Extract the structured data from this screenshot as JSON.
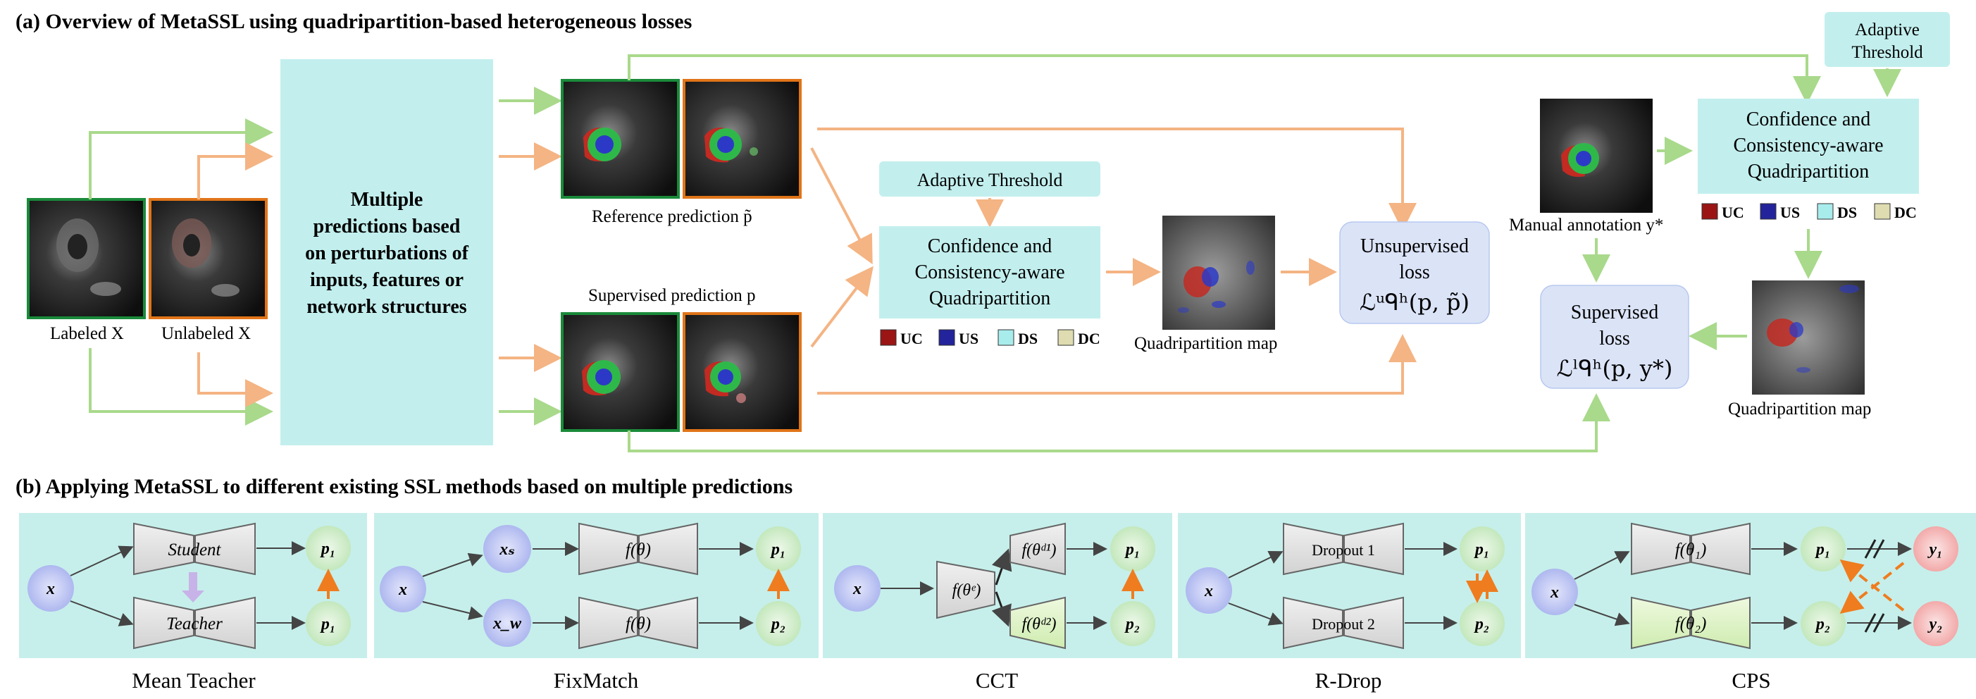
{
  "section_a": {
    "title": "(a) Overview of MetaSSL using quadripartition-based heterogeneous losses",
    "labeled_label": "Labeled X",
    "unlabeled_label": "Unlabeled X",
    "multi_pred_lines": [
      "Multiple",
      "predictions based",
      "on  perturbations of",
      "inputs, features or",
      "network structures"
    ],
    "reference_label": "Reference prediction p̃",
    "supervised_pred_label": "Supervised prediction p",
    "adaptive_threshold_mid": "Adaptive Threshold",
    "ccq_mid_lines": [
      "Confidence and",
      "Consistency-aware",
      "Quadripartition"
    ],
    "quad_map_mid_label": "Quadripartition map",
    "unsup_loss_lines": [
      "Unsupervised",
      "loss",
      "ℒᵘᑫʰ(p, p̃)"
    ],
    "manual_label": "Manual annotation y*",
    "adaptive_threshold_right_lines": [
      "Adaptive",
      "Threshold"
    ],
    "ccq_right_lines": [
      "Confidence and",
      "Consistency-aware",
      "Quadripartition"
    ],
    "sup_loss_lines": [
      "Supervised",
      "loss",
      "ℒˡᑫʰ(p, y*)"
    ],
    "quad_map_right_label": "Quadripartition map",
    "legend": [
      {
        "code": "UC",
        "color": "#9b1515"
      },
      {
        "code": "US",
        "color": "#23239b"
      },
      {
        "code": "DS",
        "color": "#a9ecec"
      },
      {
        "code": "DC",
        "color": "#dedcb0"
      }
    ]
  },
  "section_b": {
    "title": "(b) Applying MetaSSL to different existing SSL methods based on multiple predictions",
    "panels": [
      {
        "caption": "Mean Teacher",
        "top_net": "Student",
        "bottom_net": "Teacher",
        "in": "x",
        "out_top": "p₁",
        "out_bottom": "p₁"
      },
      {
        "caption": "FixMatch",
        "in": "x",
        "in_top": "xₛ",
        "in_bottom": "x_w",
        "top_net": "f(θ)",
        "bottom_net": "f(θ)",
        "out_top": "p₁",
        "out_bottom": "p₂"
      },
      {
        "caption": "CCT",
        "in": "x",
        "encoder": "f(θᵉ)",
        "top_net": "f(θᵈ¹)",
        "bottom_net": "f(θᵈ²)",
        "out_top": "p₁",
        "out_bottom": "p₂"
      },
      {
        "caption": "R-Drop",
        "in": "x",
        "top_net": "Dropout 1",
        "bottom_net": "Dropout 2",
        "out_top": "p₁",
        "out_bottom": "p₂"
      },
      {
        "caption": "CPS",
        "in": "x",
        "top_net": "f(θ₁)",
        "bottom_net": "f(θ₂)",
        "out_top": "p₁",
        "out_bottom": "p₂",
        "y_top": "y₁",
        "y_bottom": "y₂"
      }
    ]
  },
  "colors": {
    "green_arrow": "#a9d98b",
    "orange_arrow": "#f4b483",
    "cyan_box": "#c2efee",
    "lavender_box": "#dbe3f7",
    "panel_bg": "#c6efeb",
    "labeled_border": "#1a8a3a",
    "unlabeled_border": "#e07418",
    "orange_strong": "#ef7c1e"
  }
}
